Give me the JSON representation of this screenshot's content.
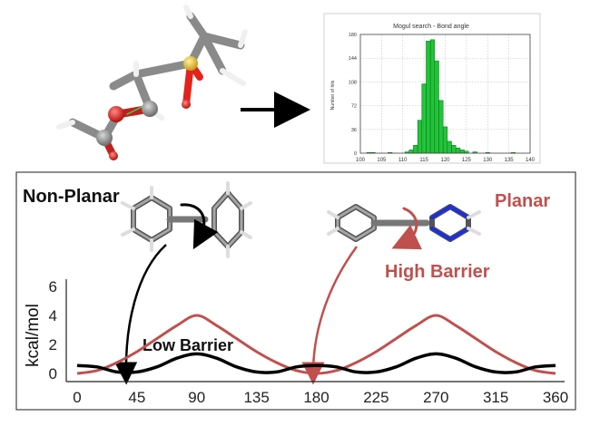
{
  "histogram": {
    "title": "Mogul search - Bond angle",
    "ylabel": "Number of hits",
    "xticks": [
      "100",
      "105",
      "110",
      "115",
      "120",
      "125",
      "130",
      "135",
      "140"
    ],
    "yticks": [
      "0",
      "36",
      "72",
      "108",
      "144",
      "180"
    ]
  },
  "labels": {
    "non_planar": "Non-Planar",
    "planar": "Planar",
    "high_barrier": "High Barrier",
    "low_barrier": "Low Barrier"
  },
  "colors": {
    "planar_curve": "#c0504d",
    "nonplanar_curve": "#000000",
    "histogram_bars": "#22c33a",
    "carbon": "#8a8a8a",
    "oxygen": "#e3221c",
    "sulfur": "#e8c22a",
    "nitrogen": "#1f2fd6"
  },
  "chart_data": [
    {
      "type": "bar",
      "title": "Mogul search - Bond angle",
      "xlabel": "",
      "ylabel": "Number of hits",
      "xlim": [
        100,
        140
      ],
      "ylim": [
        0,
        180
      ],
      "bin_width": 1,
      "x": [
        102,
        103,
        107,
        111,
        112,
        113,
        114,
        115,
        116,
        117,
        118,
        119,
        120,
        121,
        122,
        123,
        124,
        125,
        127,
        130,
        136
      ],
      "values": [
        1,
        1,
        1,
        2,
        5,
        12,
        50,
        105,
        170,
        172,
        140,
        80,
        40,
        18,
        12,
        8,
        5,
        3,
        2,
        1,
        1
      ],
      "grid": true
    },
    {
      "type": "line",
      "title": "",
      "xlabel": "",
      "ylabel": "kcal/mol",
      "xlim": [
        0,
        360
      ],
      "ylim": [
        0,
        6
      ],
      "xticks": [
        "0",
        "45",
        "90",
        "135",
        "180",
        "225",
        "270",
        "315",
        "360"
      ],
      "yticks": [
        "0",
        "2",
        "4",
        "6"
      ],
      "grid": false,
      "series": [
        {
          "x": [
            0,
            15,
            30,
            45,
            60,
            75,
            90,
            105,
            120,
            135,
            150,
            165,
            180,
            195,
            210,
            225,
            240,
            255,
            270,
            285,
            300,
            315,
            330,
            345,
            360
          ],
          "values": [
            0,
            0.2,
            0.75,
            1.5,
            2.4,
            3.3,
            4.0,
            3.3,
            2.4,
            1.5,
            0.75,
            0.2,
            0,
            0.2,
            0.75,
            1.5,
            2.4,
            3.3,
            4.0,
            3.3,
            2.4,
            1.5,
            0.75,
            0.2,
            0
          ]
        },
        {
          "x": [
            0,
            15,
            30,
            45,
            60,
            75,
            90,
            105,
            120,
            135,
            150,
            165,
            180,
            195,
            210,
            225,
            240,
            255,
            270,
            285,
            300,
            315,
            330,
            345,
            360
          ],
          "values": [
            0.55,
            0.45,
            0.1,
            0.1,
            0.45,
            1.05,
            1.35,
            1.05,
            0.45,
            0.1,
            0.1,
            0.45,
            0.55,
            0.45,
            0.1,
            0.1,
            0.45,
            1.05,
            1.35,
            1.05,
            0.45,
            0.1,
            0.1,
            0.45,
            0.55
          ]
        }
      ]
    }
  ]
}
